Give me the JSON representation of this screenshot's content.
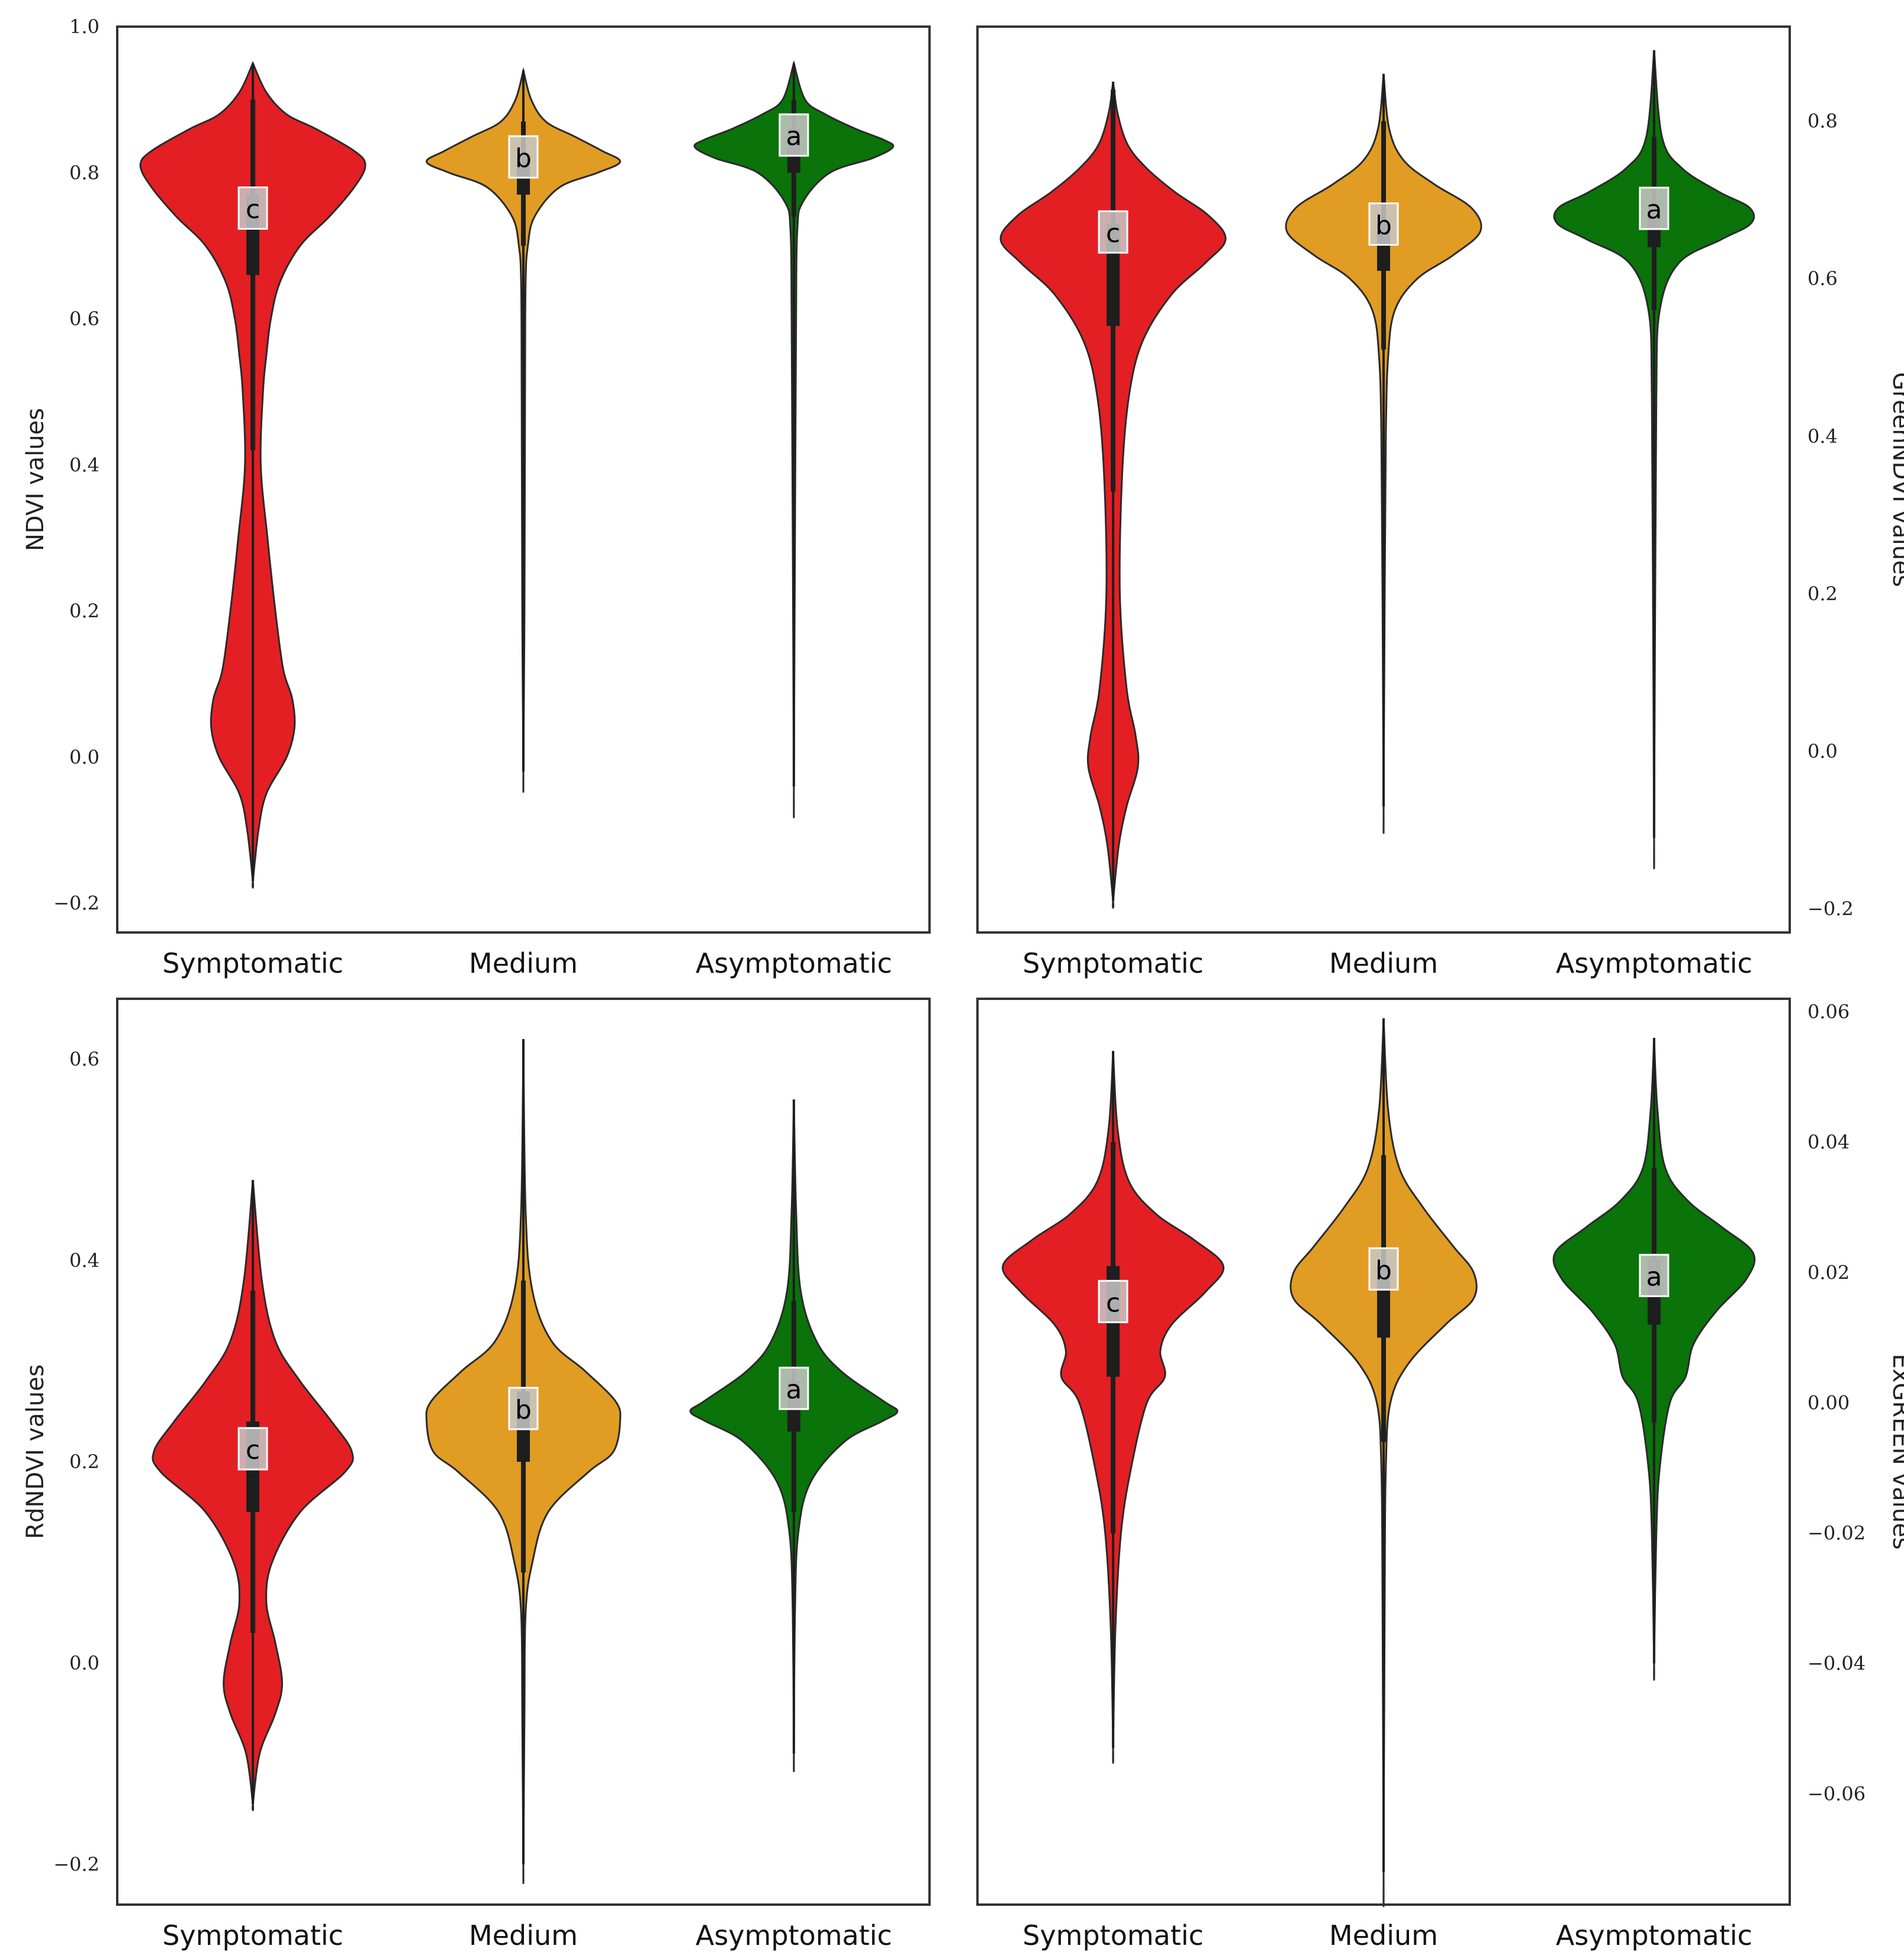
{
  "colors": {
    "symptomatic": "#e31f24",
    "medium": "#e19c23",
    "asymptomatic": "#0a730a",
    "outline": "#2a2a2a",
    "box": "#1e1e1e",
    "letter_bg": "#c8c8c8"
  },
  "chart_data": [
    {
      "type": "violin",
      "title": "",
      "ylabel": "NDVI values",
      "ylabel_side": "left",
      "ylim": [
        -0.24,
        1.0
      ],
      "yticks": [
        -0.2,
        0.0,
        0.2,
        0.4,
        0.6,
        0.8,
        1.0
      ],
      "ytick_labels": [
        "−0.2",
        "0.0",
        "0.2",
        "0.4",
        "0.6",
        "0.8",
        "1.0"
      ],
      "categories": [
        "Symptomatic",
        "Medium",
        "Asymptomatic"
      ],
      "series": [
        {
          "category": "Symptomatic",
          "min": -0.17,
          "max": 0.95,
          "q1": 0.66,
          "median": 0.72,
          "q3": 0.77,
          "whisker_low": 0.42,
          "whisker_high": 0.9,
          "letter": "c",
          "density": [
            [
              -0.17,
              0.0
            ],
            [
              -0.1,
              0.05
            ],
            [
              -0.05,
              0.12
            ],
            [
              0.0,
              0.3
            ],
            [
              0.04,
              0.37
            ],
            [
              0.08,
              0.35
            ],
            [
              0.12,
              0.27
            ],
            [
              0.2,
              0.2
            ],
            [
              0.3,
              0.13
            ],
            [
              0.4,
              0.07
            ],
            [
              0.5,
              0.09
            ],
            [
              0.55,
              0.12
            ],
            [
              0.6,
              0.16
            ],
            [
              0.65,
              0.24
            ],
            [
              0.7,
              0.42
            ],
            [
              0.74,
              0.68
            ],
            [
              0.78,
              0.9
            ],
            [
              0.81,
              1.0
            ],
            [
              0.83,
              0.9
            ],
            [
              0.86,
              0.56
            ],
            [
              0.88,
              0.3
            ],
            [
              0.91,
              0.12
            ],
            [
              0.95,
              0.0
            ]
          ]
        },
        {
          "category": "Medium",
          "min": -0.02,
          "max": 0.94,
          "q1": 0.77,
          "median": 0.79,
          "q3": 0.82,
          "whisker_low": 0.7,
          "whisker_high": 0.87,
          "letter": "b",
          "density": [
            [
              -0.02,
              0.0
            ],
            [
              0.2,
              0.01
            ],
            [
              0.5,
              0.015
            ],
            [
              0.65,
              0.02
            ],
            [
              0.7,
              0.04
            ],
            [
              0.74,
              0.1
            ],
            [
              0.78,
              0.32
            ],
            [
              0.8,
              0.66
            ],
            [
              0.815,
              0.86
            ],
            [
              0.83,
              0.7
            ],
            [
              0.85,
              0.45
            ],
            [
              0.87,
              0.2
            ],
            [
              0.9,
              0.07
            ],
            [
              0.94,
              0.0
            ]
          ]
        },
        {
          "category": "Asymptomatic",
          "min": -0.04,
          "max": 0.95,
          "q1": 0.8,
          "median": 0.82,
          "q3": 0.86,
          "whisker_low": 0.74,
          "whisker_high": 0.9,
          "letter": "a",
          "density": [
            [
              -0.04,
              0.0
            ],
            [
              0.3,
              0.01
            ],
            [
              0.6,
              0.02
            ],
            [
              0.72,
              0.03
            ],
            [
              0.76,
              0.08
            ],
            [
              0.8,
              0.32
            ],
            [
              0.82,
              0.7
            ],
            [
              0.835,
              0.88
            ],
            [
              0.845,
              0.8
            ],
            [
              0.86,
              0.55
            ],
            [
              0.88,
              0.28
            ],
            [
              0.9,
              0.1
            ],
            [
              0.95,
              0.0
            ]
          ]
        }
      ]
    },
    {
      "type": "violin",
      "title": "",
      "ylabel": "GreenNDVI values",
      "ylabel_side": "right",
      "ylim": [
        -0.23,
        0.92
      ],
      "yticks": [
        -0.2,
        0.0,
        0.2,
        0.4,
        0.6,
        0.8
      ],
      "ytick_labels": [
        "−0.2",
        "0.0",
        "0.2",
        "0.4",
        "0.6",
        "0.8"
      ],
      "categories": [
        "Symptomatic",
        "Medium",
        "Asymptomatic"
      ],
      "series": [
        {
          "category": "Symptomatic",
          "min": -0.19,
          "max": 0.85,
          "q1": 0.54,
          "median": 0.63,
          "q3": 0.67,
          "whisker_low": 0.33,
          "whisker_high": 0.84,
          "letter": "c",
          "density": [
            [
              -0.19,
              0.0
            ],
            [
              -0.12,
              0.05
            ],
            [
              -0.07,
              0.12
            ],
            [
              -0.02,
              0.22
            ],
            [
              0.02,
              0.2
            ],
            [
              0.08,
              0.12
            ],
            [
              0.2,
              0.06
            ],
            [
              0.35,
              0.08
            ],
            [
              0.45,
              0.14
            ],
            [
              0.52,
              0.26
            ],
            [
              0.58,
              0.52
            ],
            [
              0.62,
              0.82
            ],
            [
              0.65,
              1.0
            ],
            [
              0.68,
              0.85
            ],
            [
              0.71,
              0.55
            ],
            [
              0.74,
              0.3
            ],
            [
              0.77,
              0.13
            ],
            [
              0.81,
              0.04
            ],
            [
              0.85,
              0.0
            ]
          ]
        },
        {
          "category": "Medium",
          "min": -0.07,
          "max": 0.86,
          "q1": 0.61,
          "median": 0.64,
          "q3": 0.67,
          "whisker_low": 0.51,
          "whisker_high": 0.8,
          "letter": "b",
          "density": [
            [
              -0.07,
              0.0
            ],
            [
              0.2,
              0.01
            ],
            [
              0.4,
              0.02
            ],
            [
              0.5,
              0.04
            ],
            [
              0.56,
              0.1
            ],
            [
              0.6,
              0.3
            ],
            [
              0.63,
              0.62
            ],
            [
              0.66,
              0.86
            ],
            [
              0.69,
              0.78
            ],
            [
              0.72,
              0.45
            ],
            [
              0.75,
              0.18
            ],
            [
              0.79,
              0.05
            ],
            [
              0.86,
              0.0
            ]
          ]
        },
        {
          "category": "Asymptomatic",
          "min": -0.11,
          "max": 0.89,
          "q1": 0.64,
          "median": 0.66,
          "q3": 0.69,
          "whisker_low": 0.56,
          "whisker_high": 0.78,
          "letter": "a",
          "density": [
            [
              -0.11,
              0.0
            ],
            [
              0.2,
              0.01
            ],
            [
              0.45,
              0.02
            ],
            [
              0.56,
              0.05
            ],
            [
              0.62,
              0.22
            ],
            [
              0.65,
              0.6
            ],
            [
              0.67,
              0.86
            ],
            [
              0.69,
              0.85
            ],
            [
              0.71,
              0.58
            ],
            [
              0.74,
              0.25
            ],
            [
              0.78,
              0.07
            ],
            [
              0.89,
              0.0
            ]
          ]
        }
      ]
    },
    {
      "type": "violin",
      "title": "",
      "ylabel": "RdNDVI values",
      "ylabel_side": "left",
      "ylim": [
        -0.24,
        0.66
      ],
      "yticks": [
        -0.2,
        0.0,
        0.2,
        0.4,
        0.6
      ],
      "ytick_labels": [
        "−0.2",
        "0.0",
        "0.2",
        "0.4",
        "0.6"
      ],
      "categories": [
        "Symptomatic",
        "Medium",
        "Asymptomatic"
      ],
      "series": [
        {
          "category": "Symptomatic",
          "min": -0.14,
          "max": 0.48,
          "q1": 0.15,
          "median": 0.19,
          "q3": 0.24,
          "whisker_low": 0.03,
          "whisker_high": 0.37,
          "letter": "c",
          "density": [
            [
              -0.14,
              0.0
            ],
            [
              -0.09,
              0.06
            ],
            [
              -0.05,
              0.2
            ],
            [
              -0.02,
              0.26
            ],
            [
              0.02,
              0.2
            ],
            [
              0.06,
              0.12
            ],
            [
              0.1,
              0.17
            ],
            [
              0.15,
              0.42
            ],
            [
              0.19,
              0.82
            ],
            [
              0.21,
              0.88
            ],
            [
              0.24,
              0.7
            ],
            [
              0.28,
              0.42
            ],
            [
              0.32,
              0.2
            ],
            [
              0.38,
              0.08
            ],
            [
              0.48,
              0.0
            ]
          ]
        },
        {
          "category": "Medium",
          "min": -0.2,
          "max": 0.62,
          "q1": 0.2,
          "median": 0.23,
          "q3": 0.27,
          "whisker_low": 0.09,
          "whisker_high": 0.38,
          "letter": "b",
          "density": [
            [
              -0.2,
              0.0
            ],
            [
              -0.05,
              0.01
            ],
            [
              0.05,
              0.02
            ],
            [
              0.1,
              0.08
            ],
            [
              0.15,
              0.22
            ],
            [
              0.19,
              0.58
            ],
            [
              0.21,
              0.8
            ],
            [
              0.24,
              0.86
            ],
            [
              0.26,
              0.82
            ],
            [
              0.29,
              0.55
            ],
            [
              0.32,
              0.25
            ],
            [
              0.37,
              0.08
            ],
            [
              0.45,
              0.02
            ],
            [
              0.62,
              0.0
            ]
          ]
        },
        {
          "category": "Asymptomatic",
          "min": -0.09,
          "max": 0.56,
          "q1": 0.23,
          "median": 0.25,
          "q3": 0.28,
          "whisker_low": 0.15,
          "whisker_high": 0.36,
          "letter": "a",
          "density": [
            [
              -0.09,
              0.0
            ],
            [
              0.05,
              0.01
            ],
            [
              0.13,
              0.04
            ],
            [
              0.18,
              0.15
            ],
            [
              0.22,
              0.45
            ],
            [
              0.24,
              0.78
            ],
            [
              0.25,
              0.92
            ],
            [
              0.26,
              0.8
            ],
            [
              0.29,
              0.42
            ],
            [
              0.32,
              0.2
            ],
            [
              0.37,
              0.06
            ],
            [
              0.45,
              0.02
            ],
            [
              0.56,
              0.0
            ]
          ]
        }
      ]
    },
    {
      "type": "violin",
      "title": "",
      "ylabel": "ExGREEN values",
      "ylabel_side": "right",
      "ylim": [
        -0.077,
        0.062
      ],
      "yticks": [
        -0.06,
        -0.04,
        -0.02,
        0.0,
        0.02,
        0.04,
        0.06
      ],
      "ytick_labels": [
        "−0.06",
        "−0.04",
        "−0.02",
        "0.00",
        "0.02",
        "0.04",
        "0.06"
      ],
      "categories": [
        "Symptomatic",
        "Medium",
        "Asymptomatic"
      ],
      "series": [
        {
          "category": "Symptomatic",
          "min": -0.053,
          "max": 0.054,
          "q1": 0.004,
          "median": 0.012,
          "q3": 0.021,
          "whisker_low": -0.02,
          "whisker_high": 0.04,
          "letter": "c",
          "density": [
            [
              -0.053,
              0.0
            ],
            [
              -0.035,
              0.02
            ],
            [
              -0.02,
              0.07
            ],
            [
              -0.01,
              0.16
            ],
            [
              0.0,
              0.3
            ],
            [
              0.004,
              0.46
            ],
            [
              0.008,
              0.42
            ],
            [
              0.012,
              0.52
            ],
            [
              0.017,
              0.82
            ],
            [
              0.021,
              0.98
            ],
            [
              0.025,
              0.72
            ],
            [
              0.029,
              0.38
            ],
            [
              0.034,
              0.14
            ],
            [
              0.042,
              0.04
            ],
            [
              0.054,
              0.0
            ]
          ]
        },
        {
          "category": "Medium",
          "min": -0.072,
          "max": 0.059,
          "q1": 0.01,
          "median": 0.017,
          "q3": 0.021,
          "whisker_low": -0.006,
          "whisker_high": 0.038,
          "letter": "b",
          "density": [
            [
              -0.072,
              0.0
            ],
            [
              -0.03,
              0.01
            ],
            [
              -0.01,
              0.02
            ],
            [
              0.0,
              0.06
            ],
            [
              0.006,
              0.22
            ],
            [
              0.012,
              0.55
            ],
            [
              0.016,
              0.8
            ],
            [
              0.02,
              0.8
            ],
            [
              0.024,
              0.62
            ],
            [
              0.03,
              0.35
            ],
            [
              0.036,
              0.14
            ],
            [
              0.045,
              0.04
            ],
            [
              0.059,
              0.0
            ]
          ]
        },
        {
          "category": "Asymptomatic",
          "min": -0.04,
          "max": 0.056,
          "q1": 0.012,
          "median": 0.016,
          "q3": 0.022,
          "whisker_low": -0.003,
          "whisker_high": 0.036,
          "letter": "a",
          "density": [
            [
              -0.04,
              0.0
            ],
            [
              -0.02,
              0.02
            ],
            [
              -0.01,
              0.05
            ],
            [
              0.0,
              0.14
            ],
            [
              0.004,
              0.28
            ],
            [
              0.009,
              0.35
            ],
            [
              0.014,
              0.55
            ],
            [
              0.019,
              0.82
            ],
            [
              0.023,
              0.88
            ],
            [
              0.027,
              0.6
            ],
            [
              0.031,
              0.3
            ],
            [
              0.036,
              0.1
            ],
            [
              0.045,
              0.03
            ],
            [
              0.056,
              0.0
            ]
          ]
        }
      ]
    }
  ]
}
